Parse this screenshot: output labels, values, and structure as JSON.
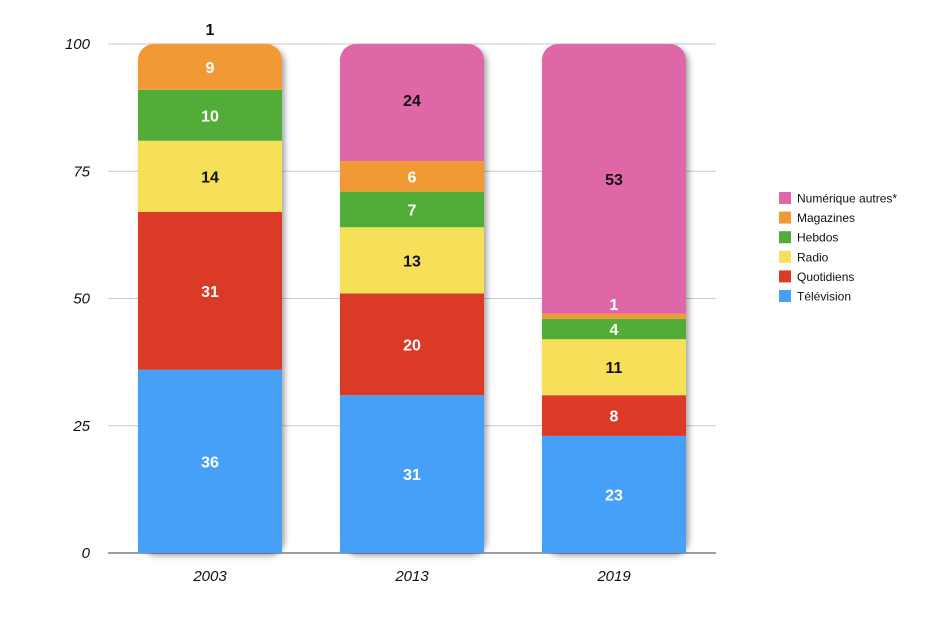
{
  "chart_data": {
    "type": "bar",
    "stacked": true,
    "title": "",
    "xlabel": "",
    "ylabel": "",
    "ylim": [
      0,
      100
    ],
    "yticks": [
      0,
      25,
      50,
      75,
      100
    ],
    "grid": true,
    "legend_position": "right",
    "categories": [
      "2003",
      "2013",
      "2019"
    ],
    "series": [
      {
        "name": "Télévision",
        "color": "#46a0f7",
        "values": [
          36,
          31,
          23
        ],
        "label_color": "#ffffff"
      },
      {
        "name": "Quotidiens",
        "color": "#db3a27",
        "values": [
          31,
          20,
          8
        ],
        "label_color": "#ffffff"
      },
      {
        "name": "Radio",
        "color": "#f6e05a",
        "values": [
          14,
          13,
          11
        ],
        "label_color": "#111111"
      },
      {
        "name": "Hebdos",
        "color": "#52ad38",
        "values": [
          10,
          7,
          4
        ],
        "label_color": "#ffffff"
      },
      {
        "name": "Magazines",
        "color": "#f19a35",
        "values": [
          9,
          6,
          1
        ],
        "label_color": "#ffffff"
      },
      {
        "name": "Numérique autres*",
        "color": "#df67a7",
        "values": [
          1,
          24,
          53
        ],
        "label_color": "#111111"
      }
    ]
  }
}
